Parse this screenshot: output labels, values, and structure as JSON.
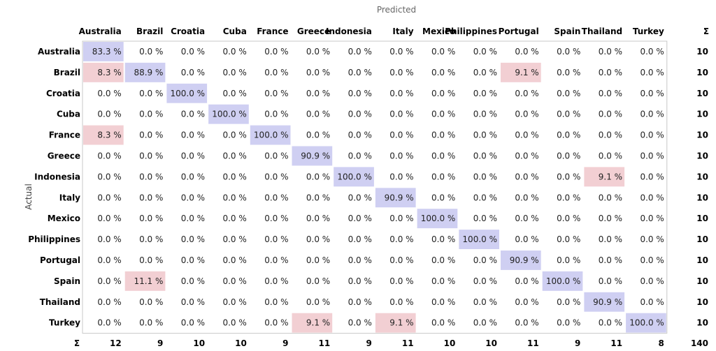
{
  "chart_data": {
    "type": "heatmap",
    "title": "Predicted",
    "ylabel": "Actual",
    "sum_symbol": "Σ",
    "categories": [
      "Australia",
      "Brazil",
      "Croatia",
      "Cuba",
      "France",
      "Greece",
      "Indonesia",
      "Italy",
      "Mexico",
      "Philippines",
      "Portugal",
      "Spain",
      "Thailand",
      "Turkey"
    ],
    "values": [
      [
        "83.3 %",
        "0.0 %",
        "0.0 %",
        "0.0 %",
        "0.0 %",
        "0.0 %",
        "0.0 %",
        "0.0 %",
        "0.0 %",
        "0.0 %",
        "0.0 %",
        "0.0 %",
        "0.0 %",
        "0.0 %"
      ],
      [
        "8.3 %",
        "88.9 %",
        "0.0 %",
        "0.0 %",
        "0.0 %",
        "0.0 %",
        "0.0 %",
        "0.0 %",
        "0.0 %",
        "0.0 %",
        "9.1 %",
        "0.0 %",
        "0.0 %",
        "0.0 %"
      ],
      [
        "0.0 %",
        "0.0 %",
        "100.0 %",
        "0.0 %",
        "0.0 %",
        "0.0 %",
        "0.0 %",
        "0.0 %",
        "0.0 %",
        "0.0 %",
        "0.0 %",
        "0.0 %",
        "0.0 %",
        "0.0 %"
      ],
      [
        "0.0 %",
        "0.0 %",
        "0.0 %",
        "100.0 %",
        "0.0 %",
        "0.0 %",
        "0.0 %",
        "0.0 %",
        "0.0 %",
        "0.0 %",
        "0.0 %",
        "0.0 %",
        "0.0 %",
        "0.0 %"
      ],
      [
        "8.3 %",
        "0.0 %",
        "0.0 %",
        "0.0 %",
        "100.0 %",
        "0.0 %",
        "0.0 %",
        "0.0 %",
        "0.0 %",
        "0.0 %",
        "0.0 %",
        "0.0 %",
        "0.0 %",
        "0.0 %"
      ],
      [
        "0.0 %",
        "0.0 %",
        "0.0 %",
        "0.0 %",
        "0.0 %",
        "90.9 %",
        "0.0 %",
        "0.0 %",
        "0.0 %",
        "0.0 %",
        "0.0 %",
        "0.0 %",
        "0.0 %",
        "0.0 %"
      ],
      [
        "0.0 %",
        "0.0 %",
        "0.0 %",
        "0.0 %",
        "0.0 %",
        "0.0 %",
        "100.0 %",
        "0.0 %",
        "0.0 %",
        "0.0 %",
        "0.0 %",
        "0.0 %",
        "9.1 %",
        "0.0 %"
      ],
      [
        "0.0 %",
        "0.0 %",
        "0.0 %",
        "0.0 %",
        "0.0 %",
        "0.0 %",
        "0.0 %",
        "90.9 %",
        "0.0 %",
        "0.0 %",
        "0.0 %",
        "0.0 %",
        "0.0 %",
        "0.0 %"
      ],
      [
        "0.0 %",
        "0.0 %",
        "0.0 %",
        "0.0 %",
        "0.0 %",
        "0.0 %",
        "0.0 %",
        "0.0 %",
        "100.0 %",
        "0.0 %",
        "0.0 %",
        "0.0 %",
        "0.0 %",
        "0.0 %"
      ],
      [
        "0.0 %",
        "0.0 %",
        "0.0 %",
        "0.0 %",
        "0.0 %",
        "0.0 %",
        "0.0 %",
        "0.0 %",
        "0.0 %",
        "100.0 %",
        "0.0 %",
        "0.0 %",
        "0.0 %",
        "0.0 %"
      ],
      [
        "0.0 %",
        "0.0 %",
        "0.0 %",
        "0.0 %",
        "0.0 %",
        "0.0 %",
        "0.0 %",
        "0.0 %",
        "0.0 %",
        "0.0 %",
        "90.9 %",
        "0.0 %",
        "0.0 %",
        "0.0 %"
      ],
      [
        "0.0 %",
        "11.1 %",
        "0.0 %",
        "0.0 %",
        "0.0 %",
        "0.0 %",
        "0.0 %",
        "0.0 %",
        "0.0 %",
        "0.0 %",
        "0.0 %",
        "100.0 %",
        "0.0 %",
        "0.0 %"
      ],
      [
        "0.0 %",
        "0.0 %",
        "0.0 %",
        "0.0 %",
        "0.0 %",
        "0.0 %",
        "0.0 %",
        "0.0 %",
        "0.0 %",
        "0.0 %",
        "0.0 %",
        "0.0 %",
        "90.9 %",
        "0.0 %"
      ],
      [
        "0.0 %",
        "0.0 %",
        "0.0 %",
        "0.0 %",
        "0.0 %",
        "9.1 %",
        "0.0 %",
        "9.1 %",
        "0.0 %",
        "0.0 %",
        "0.0 %",
        "0.0 %",
        "0.0 %",
        "100.0 %"
      ]
    ],
    "row_sums": [
      "10",
      "10",
      "10",
      "10",
      "10",
      "10",
      "10",
      "10",
      "10",
      "10",
      "10",
      "10",
      "10",
      "10"
    ],
    "col_sums": [
      "12",
      "9",
      "10",
      "10",
      "9",
      "11",
      "9",
      "11",
      "10",
      "10",
      "11",
      "9",
      "11",
      "8"
    ],
    "total": "140",
    "colors": {
      "diagonal": "#cfcff2",
      "off_diagonal": "#f2cfd3",
      "border": "#c8c8c8",
      "text": "#222222",
      "title_text": "#666666"
    }
  }
}
